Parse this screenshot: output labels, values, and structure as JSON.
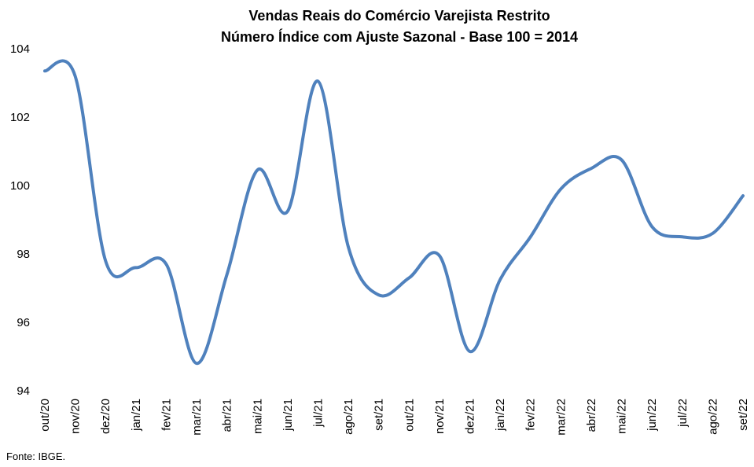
{
  "chart_data": {
    "type": "line",
    "title": "Vendas Reais do Comércio Varejista Restrito",
    "subtitle": "Número Índice com Ajuste Sazonal - Base 100 = 2014",
    "xlabel": "",
    "ylabel": "",
    "ylim": [
      94,
      104
    ],
    "yticks": [
      94,
      96,
      98,
      100,
      102,
      104
    ],
    "grid": false,
    "legend": "none",
    "categories": [
      "out/20",
      "nov/20",
      "dez/20",
      "jan/21",
      "fev/21",
      "mar/21",
      "abr/21",
      "mai/21",
      "jun/21",
      "jul/21",
      "ago/21",
      "set/21",
      "out/21",
      "nov/21",
      "dez/21",
      "jan/22",
      "fev/22",
      "mar/22",
      "abr/22",
      "mai/22",
      "jun/22",
      "jul/22",
      "ago/22",
      "set/22"
    ],
    "series": [
      {
        "color": "#4f81bd",
        "values": [
          103.35,
          103.2,
          97.8,
          97.6,
          97.7,
          94.8,
          97.4,
          100.45,
          99.25,
          103.05,
          98.2,
          96.8,
          97.3,
          97.95,
          95.15,
          97.25,
          98.5,
          99.9,
          100.5,
          100.75,
          98.8,
          98.5,
          98.6,
          99.7
        ]
      }
    ]
  },
  "footnote": "Fonte: IBGE."
}
